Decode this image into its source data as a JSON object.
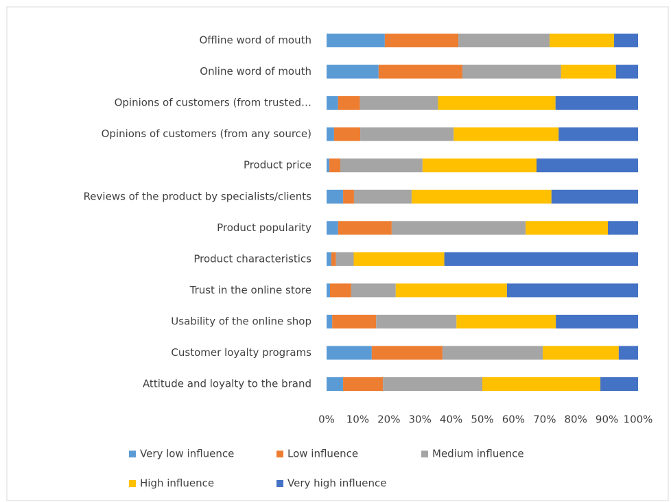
{
  "chart_data": {
    "type": "stacked_barh",
    "categories": [
      "Offline word of mouth",
      "Online word of mouth",
      "Opinions of customers (from trusted…",
      "Opinions of customers (from any source)",
      "Product price",
      "Reviews of the product by specialists/clients",
      "Product popularity",
      "Product characteristics",
      "Trust in the online store",
      "Usability of the online shop",
      "Customer loyalty programs",
      "Attitude and loyalty to the brand"
    ],
    "series": [
      {
        "name": "Very low influence",
        "color": "#5b9bd5",
        "values": [
          18.7,
          16.7,
          3.7,
          2.4,
          0.9,
          5.3,
          3.7,
          1.5,
          1.1,
          1.8,
          14.5,
          5.3
        ]
      },
      {
        "name": "Low influence",
        "color": "#ed7d31",
        "values": [
          23.6,
          26.9,
          7.0,
          8.4,
          3.5,
          3.5,
          17.2,
          1.5,
          6.8,
          14.1,
          22.7,
          12.8
        ]
      },
      {
        "name": "Medium influence",
        "color": "#a5a5a5",
        "values": [
          29.3,
          31.7,
          25.1,
          30.0,
          26.4,
          18.5,
          43.0,
          5.7,
          14.3,
          25.8,
          32.2,
          31.9
        ]
      },
      {
        "name": "High influence",
        "color": "#ffc000",
        "values": [
          20.7,
          17.6,
          37.7,
          33.7,
          36.6,
          44.9,
          26.4,
          29.1,
          35.7,
          31.9,
          24.4,
          37.9
        ]
      },
      {
        "name": "Very high influence",
        "color": "#4472c4",
        "values": [
          7.7,
          7.1,
          26.5,
          25.5,
          32.6,
          27.8,
          9.7,
          62.2,
          42.1,
          26.4,
          6.2,
          12.1
        ]
      }
    ],
    "xlim": [
      0,
      100
    ],
    "xticks": [
      {
        "value": 0,
        "label": "0%"
      },
      {
        "value": 10,
        "label": "10%"
      },
      {
        "value": 20,
        "label": "20%"
      },
      {
        "value": 30,
        "label": "30%"
      },
      {
        "value": 40,
        "label": "40%"
      },
      {
        "value": 50,
        "label": "50%"
      },
      {
        "value": 60,
        "label": "60%"
      },
      {
        "value": 70,
        "label": "70%"
      },
      {
        "value": 80,
        "label": "80%"
      },
      {
        "value": 90,
        "label": "90%"
      },
      {
        "value": 100,
        "label": "100%"
      }
    ],
    "legend": "bottom"
  }
}
